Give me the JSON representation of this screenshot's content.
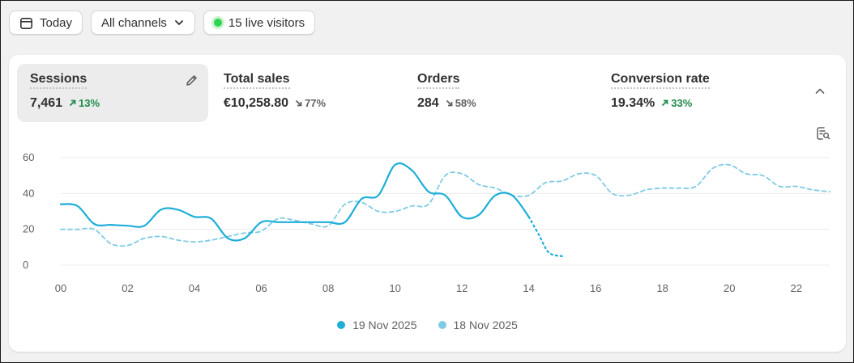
{
  "toolbar": {
    "date_label": "Today",
    "channel_label": "All channels",
    "live_label": "15 live visitors"
  },
  "metrics": [
    {
      "label": "Sessions",
      "value": "7,461",
      "delta": "13%",
      "direction": "up"
    },
    {
      "label": "Total sales",
      "value": "€10,258.80",
      "delta": "77%",
      "direction": "down"
    },
    {
      "label": "Orders",
      "value": "284",
      "delta": "58%",
      "direction": "down"
    },
    {
      "label": "Conversion rate",
      "value": "19.34%",
      "delta": "33%",
      "direction": "up"
    }
  ],
  "icons": {
    "calendar": "calendar-icon",
    "chevron": "chevron-down-icon",
    "pencil": "pencil-icon",
    "collapse": "chevron-up-icon",
    "settings": "chart-settings-icon"
  },
  "colors": {
    "current": "#1eaed8",
    "previous": "#7fcbe6",
    "up": "#1f8a4c",
    "down": "#616161",
    "live": "#2fd34e"
  },
  "chart_data": {
    "type": "line",
    "x_ticks": [
      "00",
      "02",
      "04",
      "06",
      "08",
      "10",
      "12",
      "14",
      "16",
      "18",
      "20",
      "22"
    ],
    "y_ticks": [
      "0",
      "20",
      "40",
      "60"
    ],
    "ylim": [
      0,
      60
    ],
    "xlim": [
      0,
      23
    ],
    "series": [
      {
        "name": "19 Nov 2025",
        "style": "solid",
        "x": [
          0,
          0.5,
          1,
          1.5,
          2,
          2.5,
          3,
          3.5,
          4,
          4.5,
          5,
          5.5,
          6,
          6.5,
          7,
          7.5,
          8,
          8.5,
          9,
          9.5,
          10,
          10.5,
          11,
          11.5,
          12,
          12.5,
          13,
          13.5,
          14
        ],
        "y": [
          34,
          33,
          23,
          22.5,
          22,
          22,
          31,
          31,
          27,
          26,
          15,
          15,
          24,
          24,
          24,
          24,
          24,
          24,
          37,
          39,
          56,
          53,
          41,
          39,
          27,
          28,
          39,
          39,
          27
        ]
      },
      {
        "name": "19 Nov 2025",
        "style": "dotted",
        "x": [
          14,
          14.3,
          14.6,
          15
        ],
        "y": [
          27,
          17,
          7,
          5
        ]
      },
      {
        "name": "18 Nov 2025",
        "style": "dashed",
        "x": [
          0,
          0.5,
          1,
          1.5,
          2,
          2.5,
          3,
          3.5,
          4,
          4.5,
          5,
          5.5,
          6,
          6.5,
          7,
          7.5,
          8,
          8.5,
          9,
          9.5,
          10,
          10.5,
          11,
          11.5,
          12,
          12.5,
          13,
          13.5,
          14,
          14.5,
          15,
          15.5,
          16,
          16.5,
          17,
          17.5,
          18,
          18.5,
          19,
          19.5,
          20,
          20.5,
          21,
          21.5,
          22,
          22.5,
          23
        ],
        "y": [
          20,
          20,
          20,
          12,
          11,
          15,
          16,
          14,
          13,
          14,
          16,
          18,
          19,
          26,
          25,
          23,
          22,
          34,
          35,
          30,
          30,
          33,
          34,
          50,
          51,
          45,
          43,
          39,
          39,
          46,
          47,
          51,
          50,
          40,
          39,
          42,
          43,
          43,
          44,
          54,
          56,
          51,
          50,
          44,
          44,
          42,
          41
        ]
      }
    ]
  }
}
